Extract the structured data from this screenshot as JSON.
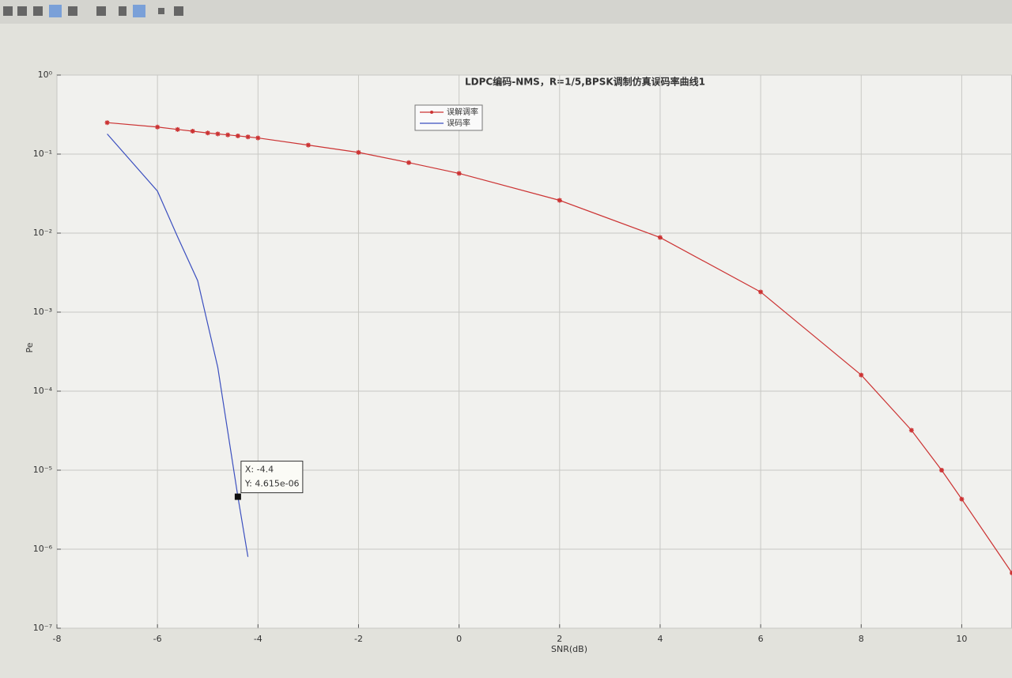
{
  "chart_data": {
    "type": "line",
    "title": "LDPC编码-NMS，R=1/5,BPSK调制仿真误码率曲线1",
    "x_label": "SNR(dB)",
    "y_label": "Pe",
    "xlim": [
      -8,
      11
    ],
    "xticks": [
      -8,
      -6,
      -4,
      -2,
      0,
      2,
      4,
      6,
      8,
      10
    ],
    "ylim": [
      1e-07,
      1
    ],
    "yticks": [
      {
        "value": 1e-07,
        "label": "10⁻⁷"
      },
      {
        "value": 1e-06,
        "label": "10⁻⁶"
      },
      {
        "value": 1e-05,
        "label": "10⁻⁵"
      },
      {
        "value": 0.0001,
        "label": "10⁻⁴"
      },
      {
        "value": 0.001,
        "label": "10⁻³"
      },
      {
        "value": 0.01,
        "label": "10⁻²"
      },
      {
        "value": 0.1,
        "label": "10⁻¹"
      },
      {
        "value": 1,
        "label": "10⁰"
      }
    ],
    "y_scale": "log",
    "grid": true,
    "legend": "north",
    "series": [
      {
        "name": "误解调率",
        "color": "#cc3333",
        "marker": "star",
        "x": [
          -7,
          -6,
          -5.6,
          -5.3,
          -5,
          -4.8,
          -4.6,
          -4.4,
          -4.2,
          -4,
          -3,
          -2,
          -1,
          0,
          2,
          4,
          6,
          8,
          9,
          9.6,
          10,
          11
        ],
        "values": [
          0.25,
          0.22,
          0.205,
          0.195,
          0.185,
          0.18,
          0.175,
          0.17,
          0.165,
          0.16,
          0.13,
          0.105,
          0.078,
          0.057,
          0.026,
          0.0088,
          0.0018,
          0.00016,
          3.2e-05,
          1e-05,
          4.3e-06,
          5e-07
        ]
      },
      {
        "name": "误码率",
        "color": "#3b4fbf",
        "marker": "none",
        "x": [
          -7,
          -6,
          -5.6,
          -5.2,
          -4.8,
          -4.4,
          -4.2
        ],
        "values": [
          0.18,
          0.034,
          0.009,
          0.0025,
          0.0002,
          4.615e-06,
          8e-07
        ]
      }
    ],
    "datatip": {
      "series": 1,
      "index": 5,
      "x_label": "X: -4.4",
      "y_label": "Y: 4.615e-06"
    }
  }
}
